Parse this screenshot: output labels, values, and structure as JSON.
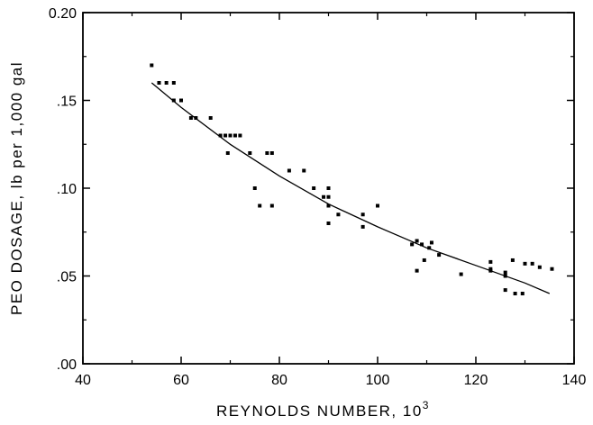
{
  "chart_data": {
    "type": "scatter",
    "title": "",
    "xlabel": "REYNOLDS NUMBER, 10",
    "xlabel_superscript": "3",
    "ylabel": "PEO DOSAGE, lb per 1,000 gal",
    "xlim": [
      40,
      140
    ],
    "ylim": [
      0.0,
      0.2
    ],
    "x_ticks": [
      40,
      60,
      80,
      100,
      120,
      140
    ],
    "x_tick_labels": [
      "40",
      "60",
      "80",
      "100",
      "120",
      "140"
    ],
    "y_ticks": [
      0.0,
      0.05,
      0.1,
      0.15,
      0.2
    ],
    "y_tick_labels": [
      ".00",
      ".05",
      ".10",
      ".15",
      "0.20"
    ],
    "grid": false,
    "series": [
      {
        "kind": "scatter",
        "points": [
          [
            54,
            0.17
          ],
          [
            55.5,
            0.16
          ],
          [
            57,
            0.16
          ],
          [
            58.5,
            0.16
          ],
          [
            58.5,
            0.15
          ],
          [
            60,
            0.15
          ],
          [
            62,
            0.14
          ],
          [
            63,
            0.14
          ],
          [
            66,
            0.14
          ],
          [
            68,
            0.13
          ],
          [
            69,
            0.13
          ],
          [
            70,
            0.13
          ],
          [
            71,
            0.13
          ],
          [
            72,
            0.13
          ],
          [
            74,
            0.12
          ],
          [
            69.5,
            0.12
          ],
          [
            75,
            0.1
          ],
          [
            76,
            0.09
          ],
          [
            77.5,
            0.12
          ],
          [
            78.5,
            0.12
          ],
          [
            78.5,
            0.09
          ],
          [
            82,
            0.11
          ],
          [
            85,
            0.11
          ],
          [
            87,
            0.1
          ],
          [
            89,
            0.095
          ],
          [
            90,
            0.1
          ],
          [
            90,
            0.095
          ],
          [
            90,
            0.09
          ],
          [
            90,
            0.08
          ],
          [
            92,
            0.085
          ],
          [
            97,
            0.085
          ],
          [
            97,
            0.078
          ],
          [
            100,
            0.09
          ],
          [
            107,
            0.068
          ],
          [
            108,
            0.07
          ],
          [
            108,
            0.053
          ],
          [
            109,
            0.068
          ],
          [
            109.5,
            0.059
          ],
          [
            110.5,
            0.066
          ],
          [
            111,
            0.069
          ],
          [
            112.5,
            0.062
          ],
          [
            117,
            0.051
          ],
          [
            123,
            0.058
          ],
          [
            123,
            0.054
          ],
          [
            123,
            0.053
          ],
          [
            126,
            0.052
          ],
          [
            126,
            0.05
          ],
          [
            126,
            0.042
          ],
          [
            127.5,
            0.059
          ],
          [
            128,
            0.04
          ],
          [
            129.5,
            0.04
          ],
          [
            130,
            0.057
          ],
          [
            131.5,
            0.057
          ],
          [
            133,
            0.055
          ],
          [
            135.5,
            0.054
          ]
        ]
      },
      {
        "kind": "line",
        "points": [
          [
            54,
            0.16
          ],
          [
            60,
            0.146
          ],
          [
            70,
            0.125
          ],
          [
            80,
            0.107
          ],
          [
            90,
            0.091
          ],
          [
            100,
            0.078
          ],
          [
            110,
            0.066
          ],
          [
            120,
            0.056
          ],
          [
            130,
            0.046
          ],
          [
            135,
            0.04
          ]
        ]
      }
    ]
  }
}
